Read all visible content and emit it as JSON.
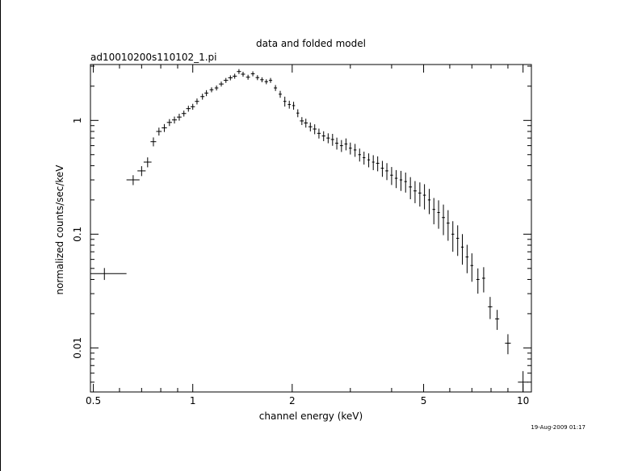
{
  "chart_data": {
    "type": "scatter",
    "title": "data and folded model",
    "subtitle": "ad10010200s110102_1.pi",
    "xlabel": "channel energy (keV)",
    "ylabel": "normalized counts/sec/keV",
    "timestamp": "19-Aug-2009 01:17",
    "xscale": "log",
    "yscale": "log",
    "xlim": [
      0.49,
      10.6
    ],
    "ylim": [
      0.0041,
      3.1
    ],
    "x_ticks": [
      "0.5",
      "1",
      "2",
      "5",
      "10"
    ],
    "y_ticks": [
      "0.01",
      "0.1",
      "1"
    ],
    "grid": false,
    "series": [
      {
        "marker": "cross-errorbar",
        "x": [
          0.54,
          0.66,
          0.7,
          0.73,
          0.76,
          0.79,
          0.82,
          0.85,
          0.88,
          0.91,
          0.94,
          0.97,
          1.0,
          1.03,
          1.07,
          1.1,
          1.14,
          1.18,
          1.22,
          1.26,
          1.3,
          1.34,
          1.38,
          1.42,
          1.47,
          1.52,
          1.57,
          1.62,
          1.67,
          1.72,
          1.78,
          1.84,
          1.9,
          1.96,
          2.02,
          2.08,
          2.14,
          2.2,
          2.27,
          2.34,
          2.41,
          2.49,
          2.57,
          2.65,
          2.73,
          2.82,
          2.91,
          3.0,
          3.1,
          3.2,
          3.3,
          3.41,
          3.52,
          3.63,
          3.75,
          3.87,
          4.0,
          4.13,
          4.27,
          4.41,
          4.56,
          4.71,
          4.87,
          5.03,
          5.2,
          5.37,
          5.55,
          5.74,
          5.93,
          6.13,
          6.34,
          6.55,
          6.77,
          7.0,
          7.3,
          7.6,
          7.95,
          8.35,
          9.0,
          10.0
        ],
        "y": [
          0.045,
          0.3,
          0.36,
          0.43,
          0.65,
          0.8,
          0.86,
          0.96,
          1.01,
          1.07,
          1.15,
          1.27,
          1.32,
          1.47,
          1.62,
          1.74,
          1.86,
          1.93,
          2.09,
          2.25,
          2.37,
          2.45,
          2.69,
          2.55,
          2.4,
          2.57,
          2.38,
          2.28,
          2.19,
          2.25,
          1.93,
          1.7,
          1.47,
          1.38,
          1.35,
          1.16,
          0.99,
          0.95,
          0.88,
          0.84,
          0.77,
          0.73,
          0.7,
          0.68,
          0.63,
          0.6,
          0.62,
          0.57,
          0.55,
          0.5,
          0.47,
          0.45,
          0.43,
          0.42,
          0.38,
          0.36,
          0.33,
          0.31,
          0.3,
          0.29,
          0.26,
          0.24,
          0.23,
          0.22,
          0.2,
          0.165,
          0.155,
          0.14,
          0.125,
          0.1,
          0.092,
          0.077,
          0.063,
          0.053,
          0.04,
          0.041,
          0.023,
          0.018,
          0.011,
          0.005
        ],
        "xerr": [
          0.09,
          0.03,
          0.02,
          0.02,
          0.015,
          0.015,
          0.015,
          0.015,
          0.015,
          0.015,
          0.015,
          0.015,
          0.015,
          0.015,
          0.015,
          0.015,
          0.015,
          0.015,
          0.02,
          0.02,
          0.02,
          0.02,
          0.02,
          0.02,
          0.02,
          0.02,
          0.02,
          0.02,
          0.02,
          0.02,
          0.02,
          0.02,
          0.02,
          0.02,
          0.02,
          0.02,
          0.03,
          0.03,
          0.03,
          0.03,
          0.03,
          0.03,
          0.03,
          0.03,
          0.03,
          0.03,
          0.03,
          0.03,
          0.03,
          0.03,
          0.03,
          0.03,
          0.03,
          0.04,
          0.04,
          0.04,
          0.04,
          0.04,
          0.04,
          0.04,
          0.05,
          0.05,
          0.05,
          0.05,
          0.05,
          0.05,
          0.05,
          0.06,
          0.06,
          0.06,
          0.06,
          0.06,
          0.07,
          0.07,
          0.08,
          0.08,
          0.12,
          0.12,
          0.18,
          0.35
        ],
        "yerr_frac": [
          0.12,
          0.1,
          0.1,
          0.1,
          0.09,
          0.08,
          0.08,
          0.07,
          0.07,
          0.07,
          0.06,
          0.06,
          0.06,
          0.06,
          0.06,
          0.06,
          0.05,
          0.05,
          0.05,
          0.05,
          0.05,
          0.05,
          0.05,
          0.05,
          0.05,
          0.05,
          0.05,
          0.05,
          0.05,
          0.05,
          0.06,
          0.07,
          0.1,
          0.08,
          0.08,
          0.08,
          0.08,
          0.09,
          0.09,
          0.1,
          0.1,
          0.1,
          0.1,
          0.12,
          0.12,
          0.12,
          0.12,
          0.12,
          0.13,
          0.13,
          0.13,
          0.14,
          0.15,
          0.15,
          0.16,
          0.17,
          0.18,
          0.18,
          0.2,
          0.2,
          0.22,
          0.22,
          0.24,
          0.25,
          0.25,
          0.26,
          0.28,
          0.3,
          0.3,
          0.3,
          0.3,
          0.3,
          0.28,
          0.28,
          0.25,
          0.25,
          0.22,
          0.2,
          0.2,
          0.25
        ]
      }
    ]
  }
}
